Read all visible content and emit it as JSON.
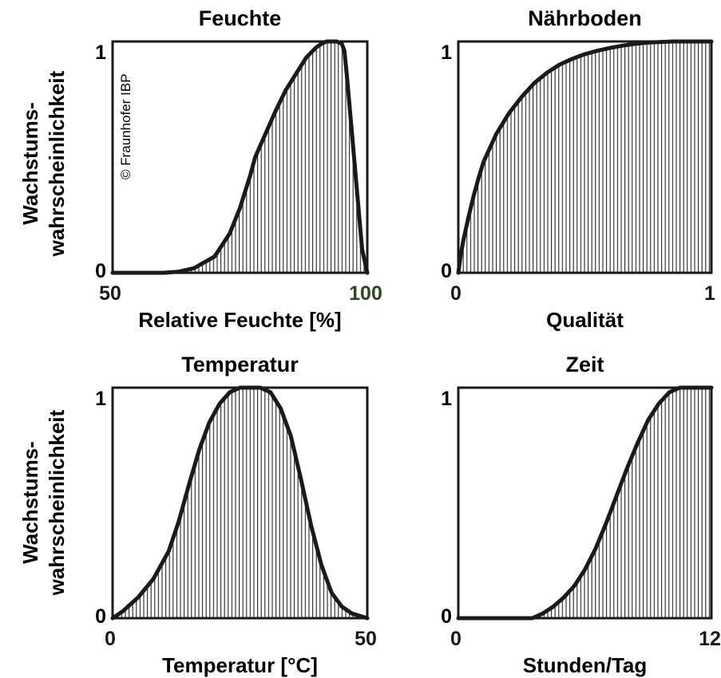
{
  "copyright": "© Fraunhofer IBP",
  "ylabel_line1": "Wachstums-",
  "ylabel_line2": "wahrscheinlichkeit",
  "charts": [
    {
      "type": "area",
      "title": "Feuchte",
      "xlabel": "Relative Feuchte [%]",
      "xlim": [
        50,
        100
      ],
      "ylim": [
        0,
        1
      ],
      "x_tick_labels": [
        "50",
        "100"
      ],
      "x_tick_colors": [
        "#1a1a1a",
        "#2a4a1e"
      ],
      "y_tick_labels": [
        "0",
        "1"
      ],
      "x": [
        50,
        60,
        63,
        66,
        70,
        73,
        75,
        77,
        78,
        80,
        82,
        84,
        86,
        88,
        90,
        91,
        92,
        93,
        94,
        95,
        95.5,
        96,
        97,
        98,
        99,
        100
      ],
      "y": [
        0,
        0,
        0.005,
        0.02,
        0.07,
        0.17,
        0.28,
        0.42,
        0.5,
        0.6,
        0.7,
        0.79,
        0.86,
        0.93,
        0.975,
        0.99,
        1.0,
        1.0,
        1.0,
        0.99,
        0.96,
        0.85,
        0.6,
        0.35,
        0.1,
        0
      ]
    },
    {
      "type": "area",
      "title": "Nährboden",
      "xlabel": "Qualität",
      "xlim": [
        0,
        1
      ],
      "ylim": [
        0,
        1
      ],
      "x_tick_labels": [
        "0",
        "1"
      ],
      "x_tick_colors": [
        "#1a1a1a",
        "#1a1a1a"
      ],
      "y_tick_labels": [
        "0",
        "1"
      ],
      "x": [
        0,
        0.01,
        0.02,
        0.04,
        0.06,
        0.08,
        0.1,
        0.15,
        0.2,
        0.25,
        0.3,
        0.35,
        0.4,
        0.45,
        0.5,
        0.55,
        0.6,
        0.65,
        0.7,
        0.75,
        0.8,
        0.85,
        0.9,
        0.95,
        1.0
      ],
      "y": [
        0,
        0.08,
        0.14,
        0.24,
        0.33,
        0.41,
        0.48,
        0.6,
        0.69,
        0.76,
        0.82,
        0.865,
        0.9,
        0.925,
        0.945,
        0.96,
        0.972,
        0.982,
        0.99,
        0.995,
        0.998,
        1.0,
        1.0,
        1.0,
        1.0
      ]
    },
    {
      "type": "area",
      "title": "Temperatur",
      "xlabel": "Temperatur [°C]",
      "xlim": [
        0,
        50
      ],
      "ylim": [
        0,
        1
      ],
      "x_tick_labels": [
        "0",
        "50"
      ],
      "x_tick_colors": [
        "#1a1a1a",
        "#1a1a1a"
      ],
      "y_tick_labels": [
        "0",
        "1"
      ],
      "x": [
        0,
        2,
        5,
        8,
        11,
        13,
        15,
        17,
        19,
        21,
        23,
        25,
        27,
        29,
        31,
        33,
        35,
        37,
        39,
        41,
        43,
        45,
        47,
        50
      ],
      "y": [
        0,
        0.03,
        0.09,
        0.17,
        0.29,
        0.42,
        0.58,
        0.73,
        0.85,
        0.93,
        0.98,
        1.0,
        1.0,
        1.0,
        0.98,
        0.91,
        0.79,
        0.6,
        0.4,
        0.23,
        0.11,
        0.05,
        0.02,
        0
      ]
    },
    {
      "type": "area",
      "title": "Zeit",
      "xlabel": "Stunden/Tag",
      "xlim": [
        0,
        12
      ],
      "ylim": [
        0,
        1
      ],
      "x_tick_labels": [
        "0",
        "12"
      ],
      "x_tick_colors": [
        "#1a1a1a",
        "#1a1a1a"
      ],
      "y_tick_labels": [
        "0",
        "1"
      ],
      "x": [
        0,
        3.5,
        4,
        4.5,
        5,
        5.5,
        6,
        6.5,
        7,
        7.5,
        8,
        8.5,
        9,
        9.5,
        10,
        10.5,
        11,
        11.5,
        12
      ],
      "y": [
        0,
        0,
        0.02,
        0.05,
        0.09,
        0.14,
        0.21,
        0.3,
        0.41,
        0.53,
        0.65,
        0.76,
        0.86,
        0.93,
        0.98,
        1.0,
        1.0,
        1.0,
        1.0
      ]
    }
  ]
}
